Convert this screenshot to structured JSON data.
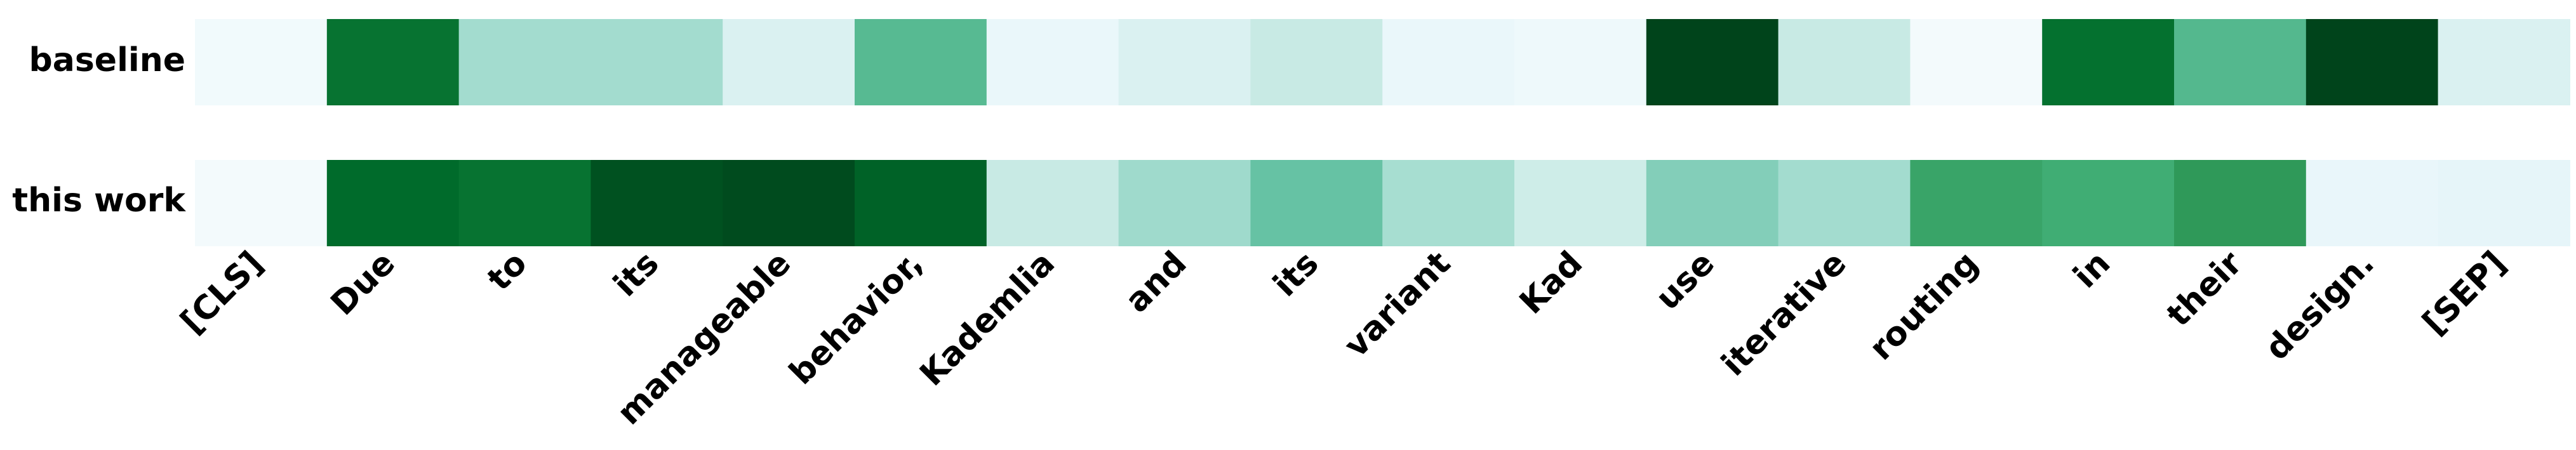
{
  "chart_data": {
    "type": "heatmap",
    "title": "",
    "xlabel": "",
    "ylabel": "",
    "colormap": "BuGn",
    "value_range": [
      0,
      1
    ],
    "rows": [
      "baseline",
      "this work"
    ],
    "tokens": [
      "[CLS]",
      "Due",
      "to",
      "its",
      "manageable",
      "behavior,",
      "Kademlia",
      "and",
      "its",
      "variant",
      "Kad",
      "use",
      "iterative",
      "routing",
      "in",
      "their",
      "design.",
      "[SEP]"
    ],
    "values": [
      [
        0.04,
        0.85,
        0.35,
        0.35,
        0.18,
        0.55,
        0.09,
        0.18,
        0.26,
        0.09,
        0.06,
        1.0,
        0.26,
        0.03,
        0.86,
        0.56,
        1.0,
        0.18
      ],
      [
        0.03,
        0.88,
        0.85,
        0.96,
        0.98,
        0.91,
        0.26,
        0.36,
        0.5,
        0.34,
        0.24,
        0.43,
        0.35,
        0.66,
        0.63,
        0.7,
        0.1,
        0.12
      ]
    ]
  }
}
